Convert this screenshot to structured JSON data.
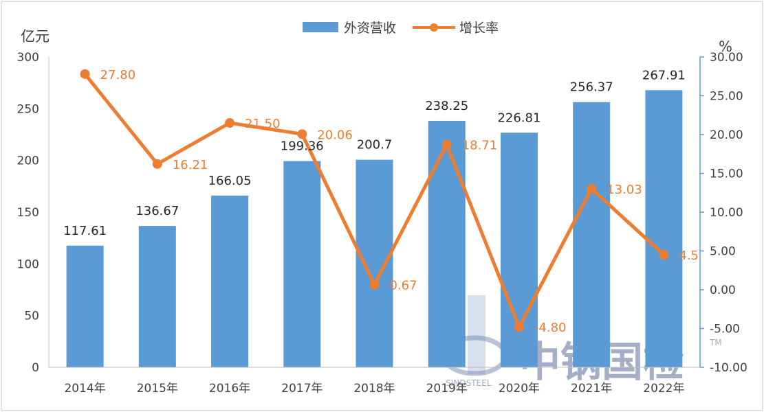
{
  "chart_data": {
    "type": "bar",
    "categories": [
      "2014年",
      "2015年",
      "2016年",
      "2017年",
      "2018年",
      "2019年",
      "2020年",
      "2021年",
      "2022年"
    ],
    "series": [
      {
        "name": "外资营收",
        "type": "bar",
        "axis": "left",
        "values": [
          117.61,
          136.67,
          166.05,
          199.36,
          200.7,
          238.25,
          226.81,
          256.37,
          267.91
        ],
        "labels": [
          "117.61",
          "136.67",
          "166.05",
          "199.36",
          "200.7",
          "238.25",
          "226.81",
          "256.37",
          "267.91"
        ],
        "color": "#5b9bd5"
      },
      {
        "name": "增长率",
        "type": "line",
        "axis": "right",
        "values": [
          27.8,
          16.21,
          21.5,
          20.06,
          0.67,
          18.71,
          -4.8,
          13.03,
          4.5
        ],
        "labels": [
          "27.80",
          "16.21",
          "21.50",
          "20.06",
          "0.67",
          "18.71",
          "-4.80",
          "13.03",
          "4.5"
        ],
        "color": "#ed7d31"
      }
    ],
    "left_axis": {
      "unit": "亿元",
      "ylim": [
        0,
        300
      ],
      "ticks": [
        0,
        50,
        100,
        150,
        200,
        250,
        300
      ],
      "tick_labels": [
        "0",
        "50",
        "100",
        "150",
        "200",
        "250",
        "300"
      ]
    },
    "right_axis": {
      "unit": "%",
      "ylim": [
        -10,
        30
      ],
      "ticks": [
        -10,
        -5,
        0,
        5,
        10,
        15,
        20,
        25,
        30
      ],
      "tick_labels": [
        "-10.00",
        "-5.00",
        "0.00",
        "5.00",
        "10.00",
        "15.00",
        "20.00",
        "25.00",
        "30.00"
      ]
    },
    "legend": {
      "position": "top-center"
    },
    "grid": false
  },
  "watermark": {
    "text": "中钢国检",
    "sub_text": "SINOSTEEL",
    "tm": "TM"
  }
}
